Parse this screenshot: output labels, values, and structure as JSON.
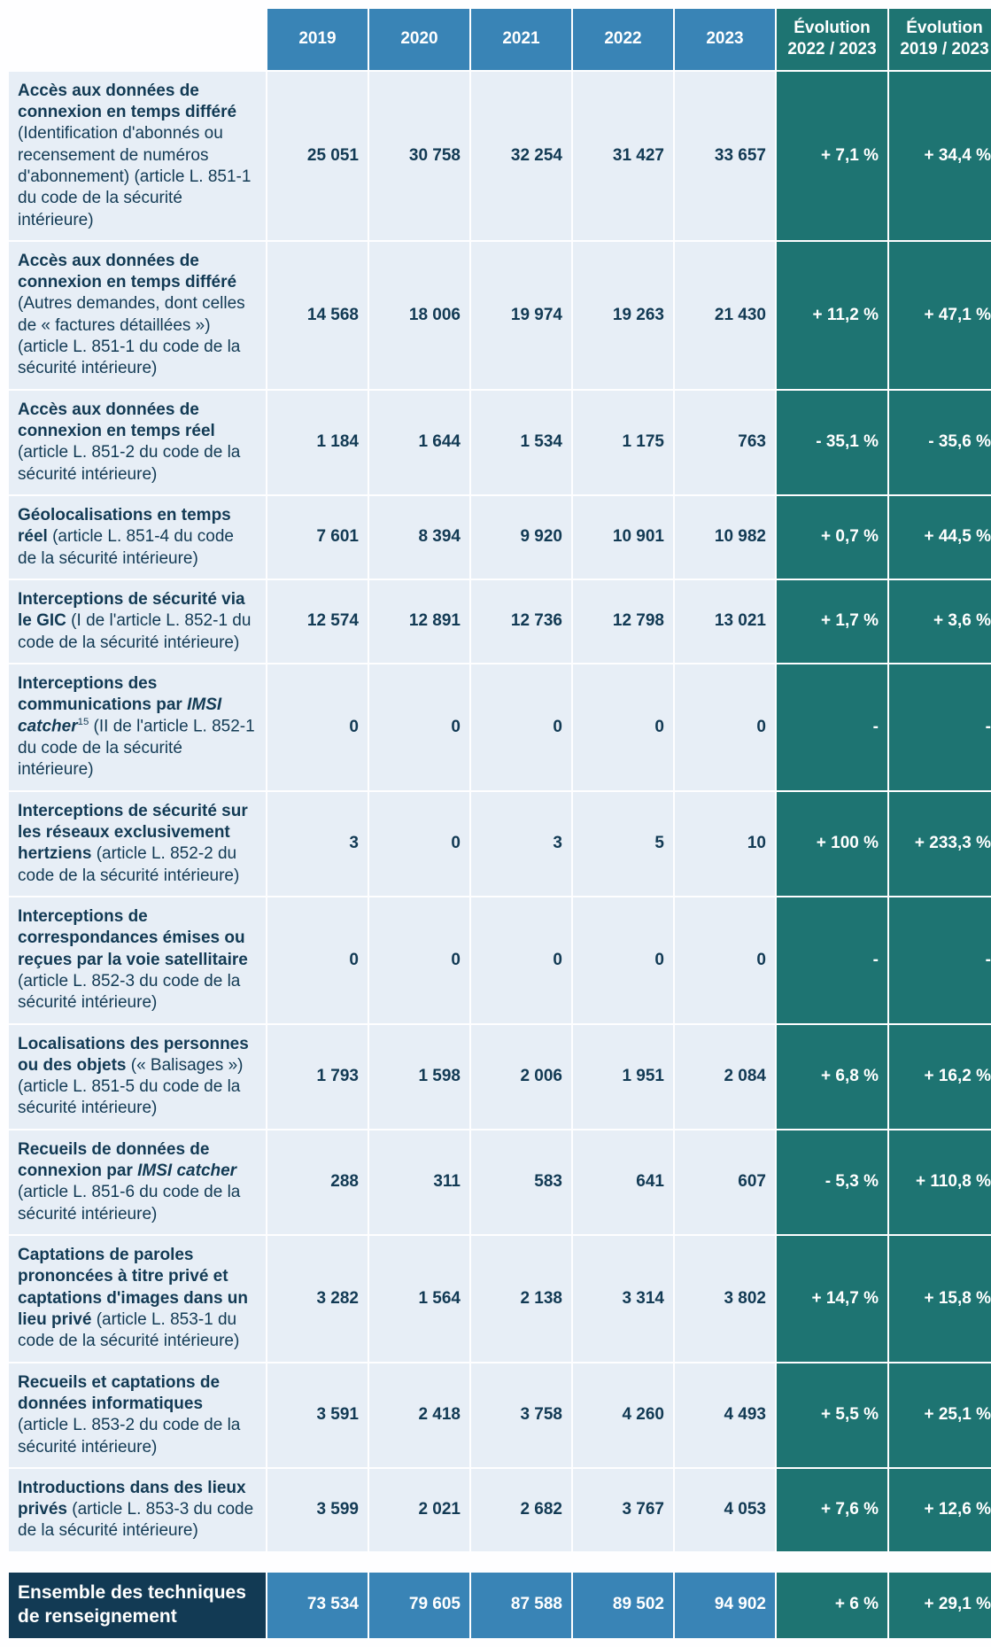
{
  "colors": {
    "header_year_bg": "#3984b6",
    "header_evo_bg": "#1e7472",
    "body_bg": "#e7eef6",
    "body_text": "#123a54",
    "evo_bg": "#1e7472",
    "total_label_bg": "#123a54",
    "total_value_bg": "#3984b6",
    "white": "#ffffff"
  },
  "header": {
    "years": [
      "2019",
      "2020",
      "2021",
      "2022",
      "2023"
    ],
    "evo22_23_line1": "Évolution",
    "evo22_23_line2": "2022 / 2023",
    "evo19_23_line1": "Évolution",
    "evo19_23_line2": "2019 / 2023"
  },
  "rows": [
    {
      "label_bold": "Accès aux données de connexion en temps différé",
      "label_rest": " (Identification d'abonnés ou recensement de numéros d'abonnement) (article L. 851-1 du code de la sécurité intérieure)",
      "v": [
        "25 051",
        "30 758",
        "32 254",
        "31 427",
        "33 657"
      ],
      "e22_23": "+ 7,1 %",
      "e19_23": "+ 34,4 %"
    },
    {
      "label_bold": "Accès aux données de connexion en temps différé",
      "label_rest": " (Autres demandes, dont celles de « factures détaillées ») (article L. 851-1 du code de la sécurité intérieure)",
      "v": [
        "14 568",
        "18 006",
        "19 974",
        "19 263",
        "21 430"
      ],
      "e22_23": "+ 11,2 %",
      "e19_23": "+ 47,1 %"
    },
    {
      "label_bold": "Accès aux données de connexion en temps réel",
      "label_rest": " (article L. 851-2 du code de la sécurité intérieure)",
      "v": [
        "1 184",
        "1 644",
        "1 534",
        "1 175",
        "763"
      ],
      "e22_23": "- 35,1 %",
      "e19_23": "- 35,6 %"
    },
    {
      "label_bold": "Géolocalisations en temps réel",
      "label_rest": " (article L. 851-4 du code de la sécurité intérieure)",
      "v": [
        "7 601",
        "8 394",
        "9 920",
        "10 901",
        "10 982"
      ],
      "e22_23": "+ 0,7 %",
      "e19_23": "+ 44,5 %"
    },
    {
      "label_bold": "Interceptions de sécurité via le GIC",
      "label_rest": " (I de l'article L. 852-1 du code de la sécurité intérieure)",
      "v": [
        "12 574",
        "12 891",
        "12 736",
        "12 798",
        "13 021"
      ],
      "e22_23": "+ 1,7 %",
      "e19_23": "+ 3,6 %"
    },
    {
      "label_bold": "Interceptions des communications par ",
      "label_italic": "IMSI catcher",
      "label_sup": "15",
      "label_rest": " (II de l'article L. 852-1 du code de la sécurité intérieure)",
      "v": [
        "0",
        "0",
        "0",
        "0",
        "0"
      ],
      "e22_23": "-",
      "e19_23": "-"
    },
    {
      "label_bold": "Interceptions de sécurité sur les réseaux exclusivement hertziens",
      "label_rest": " (article L. 852-2 du code de la sécurité intérieure)",
      "v": [
        "3",
        "0",
        "3",
        "5",
        "10"
      ],
      "e22_23": "+ 100 %",
      "e19_23": "+ 233,3 %"
    },
    {
      "label_bold": "Interceptions de correspondances émises ou reçues par la voie satellitaire",
      "label_rest": " (article L. 852-3 du code de la sécurité intérieure)",
      "v": [
        "0",
        "0",
        "0",
        "0",
        "0"
      ],
      "e22_23": "-",
      "e19_23": "-"
    },
    {
      "label_bold": "Localisations des personnes ou des objets",
      "label_rest": " (« Balisages ») (article L. 851-5 du code de la sécurité intérieure)",
      "v": [
        "1 793",
        "1 598",
        "2 006",
        "1 951",
        "2 084"
      ],
      "e22_23": "+ 6,8 %",
      "e19_23": "+ 16,2 %"
    },
    {
      "label_bold": "Recueils de données de connexion par ",
      "label_italic": "IMSI catcher",
      "label_rest": " (article L. 851-6 du code de la sécurité intérieure)",
      "v": [
        "288",
        "311",
        "583",
        "641",
        "607"
      ],
      "e22_23": "- 5,3 %",
      "e19_23": "+ 110,8 %"
    },
    {
      "label_bold": "Captations de paroles prononcées à titre privé et captations d'images dans un lieu privé",
      "label_rest": " (article L. 853-1 du code de la sécurité intérieure)",
      "v": [
        "3 282",
        "1 564",
        "2 138",
        "3 314",
        "3 802"
      ],
      "e22_23": "+ 14,7 %",
      "e19_23": "+ 15,8 %"
    },
    {
      "label_bold": "Recueils et captations de données informatiques",
      "label_rest": " (article L. 853-2 du code de la sécurité intérieure)",
      "v": [
        "3 591",
        "2 418",
        "3 758",
        "4 260",
        "4 493"
      ],
      "e22_23": "+ 5,5 %",
      "e19_23": "+ 25,1 %"
    },
    {
      "label_bold": "Introductions dans des lieux privés",
      "label_rest": " (article L. 853-3 du code de la sécurité intérieure)",
      "v": [
        "3 599",
        "2 021",
        "2 682",
        "3 767",
        "4 053"
      ],
      "e22_23": "+ 7,6 %",
      "e19_23": "+ 12,6 %"
    }
  ],
  "total": {
    "label": "Ensemble des techniques de renseignement",
    "v": [
      "73 534",
      "79 605",
      "87 588",
      "89 502",
      "94 902"
    ],
    "e22_23": "+ 6 %",
    "e19_23": "+ 29,1 %"
  }
}
